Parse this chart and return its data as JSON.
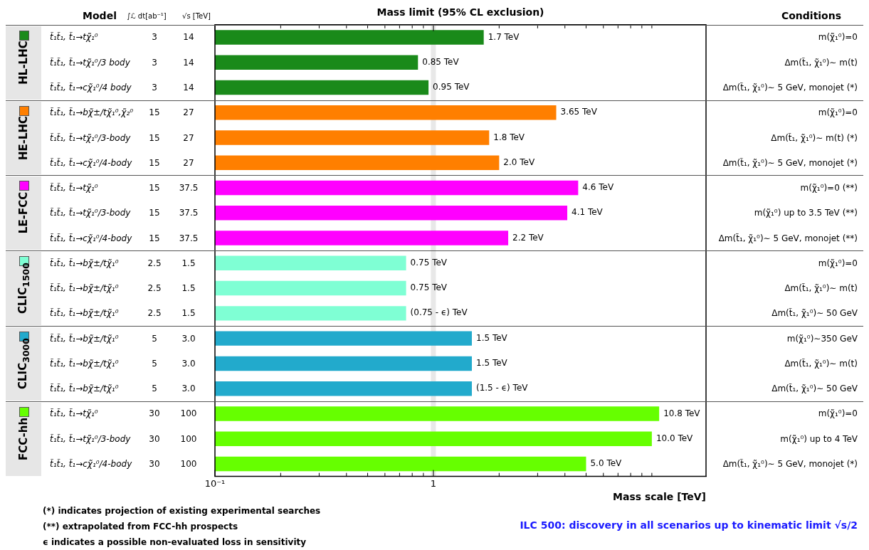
{
  "chart_data": {
    "type": "bar",
    "orientation": "horizontal",
    "title": "Mass limit (95% CL exclusion)",
    "xlabel": "Mass scale [TeV]",
    "categories": [
      "t̃₁t̃₁, t̃₁→tχ̃₁⁰",
      "t̃₁t̃₁, t̃₁→tχ̃₁⁰/3 body",
      "t̃₁t̃₁, t̃₁→cχ̃₁⁰/4 body",
      "t̃₁t̃₁, t̃₁→bχ̃±/tχ̃₁⁰,χ̃₂⁰",
      "t̃₁t̃₁, t̃₁→tχ̃₁⁰/3-body",
      "t̃₁t̃₁, t̃₁→cχ̃₁⁰/4-body",
      "t̃₁t̃₁, t̃₁→tχ̃₁⁰",
      "t̃₁t̃₁, t̃₁→tχ̃₁⁰/3-body",
      "t̃₁t̃₁, t̃₁→cχ̃₁⁰/4-body",
      "t̃₁t̃₁, t̃₁→bχ̃±/tχ̃₁⁰",
      "t̃₁t̃₁, t̃₁→bχ̃±/tχ̃₁⁰",
      "t̃₁t̃₁, t̃₁→bχ̃±/tχ̃₁⁰",
      "t̃₁t̃₁, t̃₁→bχ̃±/tχ̃₁⁰",
      "t̃₁t̃₁, t̃₁→bχ̃±/tχ̃₁⁰",
      "t̃₁t̃₁, t̃₁→bχ̃±/tχ̃₁⁰",
      "t̃₁t̃₁, t̃₁→tχ̃₁⁰",
      "t̃₁t̃₁, t̃₁→tχ̃₁⁰/3-body",
      "t̃₁t̃₁, t̃₁→cχ̃₁⁰/4-body"
    ],
    "series": [
      {
        "name": "HL-LHC",
        "color": "#1a8a1a",
        "values": [
          1.7,
          0.85,
          0.95,
          null,
          null,
          null,
          null,
          null,
          null,
          null,
          null,
          null,
          null,
          null,
          null,
          null,
          null,
          null
        ],
        "value_labels": [
          "1.7 TeV",
          "0.85 TeV",
          "0.95 TeV",
          null,
          null,
          null,
          null,
          null,
          null,
          null,
          null,
          null,
          null,
          null,
          null,
          null,
          null,
          null
        ]
      },
      {
        "name": "HE-LHC",
        "color": "#ff7f00",
        "values": [
          null,
          null,
          null,
          3.65,
          1.8,
          2.0,
          null,
          null,
          null,
          null,
          null,
          null,
          null,
          null,
          null,
          null,
          null,
          null
        ],
        "value_labels": [
          null,
          null,
          null,
          "3.65 TeV",
          "1.8 TeV",
          "2.0 TeV",
          null,
          null,
          null,
          null,
          null,
          null,
          null,
          null,
          null,
          null,
          null,
          null
        ]
      },
      {
        "name": "LE-FCC",
        "color": "#ff00ff",
        "values": [
          null,
          null,
          null,
          null,
          null,
          null,
          4.6,
          4.1,
          2.2,
          null,
          null,
          null,
          null,
          null,
          null,
          null,
          null,
          null
        ],
        "value_labels": [
          null,
          null,
          null,
          null,
          null,
          null,
          "4.6 TeV",
          "4.1 TeV",
          "2.2 TeV",
          null,
          null,
          null,
          null,
          null,
          null,
          null,
          null,
          null
        ]
      },
      {
        "name": "CLIC$_{1500}$",
        "color": "#7fffd4",
        "values": [
          null,
          null,
          null,
          null,
          null,
          null,
          null,
          null,
          null,
          0.75,
          0.75,
          0.75,
          null,
          null,
          null,
          null,
          null,
          null
        ],
        "value_labels": [
          null,
          null,
          null,
          null,
          null,
          null,
          null,
          null,
          null,
          "0.75 TeV",
          "0.75 TeV",
          "(0.75 - ϵ) TeV",
          null,
          null,
          null,
          null,
          null,
          null
        ]
      },
      {
        "name": "CLIC$_{3000}$",
        "color": "#22aacc",
        "values": [
          null,
          null,
          null,
          null,
          null,
          null,
          null,
          null,
          null,
          null,
          null,
          null,
          1.5,
          1.5,
          1.5,
          null,
          null,
          null
        ],
        "value_labels": [
          null,
          null,
          null,
          null,
          null,
          null,
          null,
          null,
          null,
          null,
          null,
          null,
          "1.5 TeV",
          "1.5 TeV",
          "(1.5 - ϵ) TeV",
          null,
          null,
          null
        ]
      },
      {
        "name": "FCC-hh",
        "color": "#66ff00",
        "values": [
          null,
          null,
          null,
          null,
          null,
          null,
          null,
          null,
          null,
          null,
          null,
          null,
          null,
          null,
          null,
          10.8,
          10.0,
          5.0
        ],
        "value_labels": [
          null,
          null,
          null,
          null,
          null,
          null,
          null,
          null,
          null,
          null,
          null,
          null,
          null,
          null,
          null,
          "10.8 TeV",
          "10.0 TeV",
          "5.0 TeV"
        ]
      }
    ],
    "xlim": [
      0.1,
      17.7
    ],
    "xticks": [
      {
        "value": 0.1,
        "label": "10⁻¹"
      },
      {
        "value": 0.2,
        "label": null
      },
      {
        "value": 0.3,
        "label": null
      },
      {
        "value": 0.4,
        "label": null
      },
      {
        "value": 0.5,
        "label": null
      },
      {
        "value": 0.6,
        "label": null
      },
      {
        "value": 0.7,
        "label": null
      },
      {
        "value": 0.8,
        "label": null
      },
      {
        "value": 0.9,
        "label": null
      },
      1,
      {
        "value": 2,
        "label": null
      },
      {
        "value": 3,
        "label": null
      },
      {
        "value": 4,
        "label": null
      },
      {
        "value": 5,
        "label": null
      },
      {
        "value": 6,
        "label": null
      },
      {
        "value": 7,
        "label": null
      },
      {
        "value": 8,
        "label": null
      },
      {
        "value": 9,
        "label": null
      },
      {
        "value": 10,
        "label": null
      }
    ],
    "log": "x",
    "grid": false,
    "legend": "left",
    "ref_lines": [
      {
        "axis": "x",
        "value": 1,
        "color": "#e8e8e8"
      }
    ],
    "annotations": [
      "3",
      "3",
      "3",
      "15",
      "15",
      "15",
      "15",
      "15",
      "15",
      "2.5",
      "2.5",
      "2.5",
      "5",
      "5",
      "5",
      "30",
      "30",
      "30",
      "14",
      "14",
      "14",
      "27",
      "27",
      "27",
      "37.5",
      "37.5",
      "37.5",
      "1.5",
      "1.5",
      "1.5",
      "3.0",
      "3.0",
      "3.0",
      "100",
      "100",
      "100",
      "m(χ̃₁⁰)=0",
      "Δm(t̃₁, χ̃₁⁰)∼ m(t)",
      "Δm(t̃₁, χ̃₁⁰)∼ 5 GeV, monojet (*)",
      "m(χ̃₁⁰)=0",
      "Δm(t̃₁, χ̃₁⁰)∼ m(t) (*)",
      "Δm(t̃₁, χ̃₁⁰)∼ 5 GeV, monojet (*)",
      "m(χ̃₁⁰)=0 (**)",
      "m(χ̃₁⁰) up to 3.5 TeV (**)",
      "Δm(t̃₁, χ̃₁⁰)∼ 5 GeV, monojet (**)",
      "m(χ̃₁⁰)=0",
      "Δm(t̃₁, χ̃₁⁰)∼ m(t)",
      "Δm(t̃₁, χ̃₁⁰)∼ 50 GeV",
      "m(χ̃₁⁰)∼350 GeV",
      "Δm(t̃₁, χ̃₁⁰)∼ m(t)",
      "Δm(t̃₁, χ̃₁⁰)∼ 50 GeV",
      "m(χ̃₁⁰)=0",
      "m(χ̃₁⁰) up to 4 TeV",
      "Δm(t̃₁, χ̃₁⁰)∼ 5 GeV, monojet (*)",
      "Model",
      "∫ℒ dt[ab⁻¹]",
      "√s [TeV]",
      "Conditions",
      "(*) indicates projection of existing experimental searches",
      "(**) extrapolated from FCC-hh prospects",
      "ϵ indicates a possible non-evaluated loss in sensitivity",
      "ILC 500: discovery in all scenarios up to kinematic limit √s/2"
    ]
  }
}
